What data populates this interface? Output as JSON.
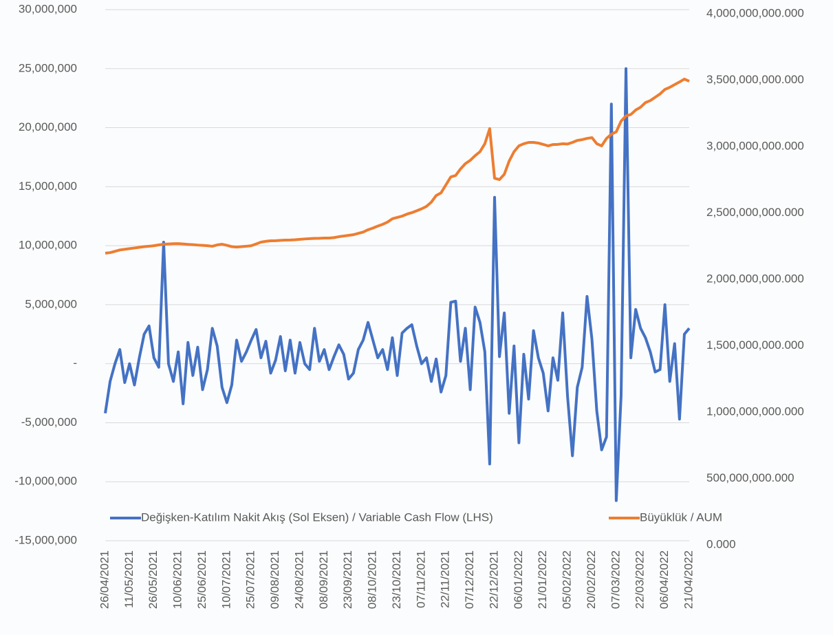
{
  "chart_data": {
    "type": "line",
    "x": [
      "26/04/2021",
      "29/04/2021",
      "02/05/2021",
      "05/05/2021",
      "08/05/2021",
      "11/05/2021",
      "14/05/2021",
      "17/05/2021",
      "20/05/2021",
      "23/05/2021",
      "26/05/2021",
      "29/05/2021",
      "01/06/2021",
      "04/06/2021",
      "07/06/2021",
      "10/06/2021",
      "13/06/2021",
      "16/06/2021",
      "19/06/2021",
      "22/06/2021",
      "25/06/2021",
      "28/06/2021",
      "01/07/2021",
      "04/07/2021",
      "07/07/2021",
      "10/07/2021",
      "13/07/2021",
      "16/07/2021",
      "19/07/2021",
      "22/07/2021",
      "25/07/2021",
      "28/07/2021",
      "31/07/2021",
      "03/08/2021",
      "06/08/2021",
      "09/08/2021",
      "12/08/2021",
      "15/08/2021",
      "18/08/2021",
      "21/08/2021",
      "24/08/2021",
      "27/08/2021",
      "30/08/2021",
      "02/09/2021",
      "05/09/2021",
      "08/09/2021",
      "11/09/2021",
      "14/09/2021",
      "17/09/2021",
      "20/09/2021",
      "23/09/2021",
      "26/09/2021",
      "29/09/2021",
      "02/10/2021",
      "05/10/2021",
      "08/10/2021",
      "11/10/2021",
      "14/10/2021",
      "17/10/2021",
      "20/10/2021",
      "23/10/2021",
      "26/10/2021",
      "29/10/2021",
      "01/11/2021",
      "04/11/2021",
      "07/11/2021",
      "10/11/2021",
      "13/11/2021",
      "16/11/2021",
      "19/11/2021",
      "22/11/2021",
      "25/11/2021",
      "28/11/2021",
      "01/12/2021",
      "04/12/2021",
      "07/12/2021",
      "10/12/2021",
      "13/12/2021",
      "16/12/2021",
      "19/12/2021",
      "22/12/2021",
      "25/12/2021",
      "28/12/2021",
      "31/12/2021",
      "03/01/2022",
      "06/01/2022",
      "09/01/2022",
      "12/01/2022",
      "15/01/2022",
      "18/01/2022",
      "21/01/2022",
      "24/01/2022",
      "27/01/2022",
      "30/01/2022",
      "02/02/2022",
      "05/02/2022",
      "08/02/2022",
      "11/02/2022",
      "14/02/2022",
      "17/02/2022",
      "20/02/2022",
      "23/02/2022",
      "26/02/2022",
      "01/03/2022",
      "04/03/2022",
      "07/03/2022",
      "10/03/2022",
      "13/03/2022",
      "16/03/2022",
      "19/03/2022",
      "22/03/2022",
      "25/03/2022",
      "28/03/2022",
      "31/03/2022",
      "03/04/2022",
      "06/04/2022",
      "09/04/2022",
      "12/04/2022",
      "15/04/2022",
      "18/04/2022",
      "21/04/2022"
    ],
    "xticks": [
      "26/04/2021",
      "11/05/2021",
      "26/05/2021",
      "10/06/2021",
      "25/06/2021",
      "10/07/2021",
      "25/07/2021",
      "09/08/2021",
      "24/08/2021",
      "08/09/2021",
      "23/09/2021",
      "08/10/2021",
      "23/10/2021",
      "07/11/2021",
      "22/11/2021",
      "07/12/2021",
      "22/12/2021",
      "06/01/2022",
      "21/01/2022",
      "05/02/2022",
      "20/02/2022",
      "07/03/2022",
      "22/03/2022",
      "06/04/2022",
      "21/04/2022"
    ],
    "series": [
      {
        "name": "Değişken-Katılım Nakit Akış (Sol Eksen) / Variable Cash Flow (LHS)",
        "color": "#4472c4",
        "axis": "y",
        "values": [
          -4200000,
          -1500000,
          0,
          1200000,
          -1600000,
          0,
          -1800000,
          500000,
          2500000,
          3200000,
          500000,
          -300000,
          10300000,
          0,
          -1500000,
          1000000,
          -3400000,
          1800000,
          -1000000,
          1400000,
          -2200000,
          -500000,
          3000000,
          1500000,
          -2000000,
          -3300000,
          -1800000,
          2000000,
          200000,
          1000000,
          2000000,
          2900000,
          500000,
          1900000,
          -800000,
          300000,
          2300000,
          -600000,
          2000000,
          -800000,
          1800000,
          0,
          -500000,
          3000000,
          200000,
          1200000,
          -500000,
          600000,
          1600000,
          800000,
          -1300000,
          -800000,
          1200000,
          2000000,
          3500000,
          2000000,
          500000,
          1200000,
          -500000,
          2200000,
          -1000000,
          2600000,
          3000000,
          3300000,
          1500000,
          0,
          500000,
          -1500000,
          400000,
          -2400000,
          -1000000,
          5200000,
          5300000,
          200000,
          3000000,
          -2200000,
          4800000,
          3500000,
          1000000,
          -8500000,
          14100000,
          600000,
          4300000,
          -4200000,
          1500000,
          -6700000,
          800000,
          -3000000,
          2800000,
          500000,
          -800000,
          -4000000,
          500000,
          -1400000,
          4300000,
          -2800000,
          -7800000,
          -2000000,
          -300000,
          5700000,
          2100000,
          -4000000,
          -7300000,
          -6200000,
          22000000,
          -11600000,
          -2700000,
          25000000,
          500000,
          4600000,
          3000000,
          2200000,
          1000000,
          -700000,
          -500000,
          5000000,
          -1500000,
          1700000,
          -4700000,
          2500000,
          3000000
        ]
      },
      {
        "name": "Büyüklük / AUM",
        "color": "#ed7d31",
        "axis": "y2",
        "values": [
          2166000000000,
          2170000000000,
          2180000000000,
          2190000000000,
          2195000000000,
          2200000000000,
          2205000000000,
          2210000000000,
          2215000000000,
          2218000000000,
          2222000000000,
          2228000000000,
          2233000000000,
          2235000000000,
          2237000000000,
          2238000000000,
          2235000000000,
          2232000000000,
          2230000000000,
          2227000000000,
          2225000000000,
          2222000000000,
          2218000000000,
          2228000000000,
          2233000000000,
          2225000000000,
          2215000000000,
          2212000000000,
          2215000000000,
          2218000000000,
          2222000000000,
          2235000000000,
          2249000000000,
          2255000000000,
          2259000000000,
          2260000000000,
          2262000000000,
          2264000000000,
          2265000000000,
          2267000000000,
          2270000000000,
          2273000000000,
          2275000000000,
          2277000000000,
          2278000000000,
          2280000000000,
          2280000000000,
          2283000000000,
          2290000000000,
          2295000000000,
          2300000000000,
          2305000000000,
          2315000000000,
          2325000000000,
          2342000000000,
          2355000000000,
          2370000000000,
          2383000000000,
          2400000000000,
          2425000000000,
          2435000000000,
          2445000000000,
          2460000000000,
          2471000000000,
          2485000000000,
          2500000000000,
          2518000000000,
          2550000000000,
          2600000000000,
          2620000000000,
          2680000000000,
          2740000000000,
          2751000000000,
          2800000000000,
          2840000000000,
          2865000000000,
          2900000000000,
          2930000000000,
          2990000000000,
          3104000000000,
          2730000000000,
          2720000000000,
          2760000000000,
          2860000000000,
          2930000000000,
          2974000000000,
          2990000000000,
          3000000000000,
          3000000000000,
          2995000000000,
          2985000000000,
          2974000000000,
          2984000000000,
          2985000000000,
          2990000000000,
          2988000000000,
          3000000000000,
          3015000000000,
          3021000000000,
          3030000000000,
          3036000000000,
          2990000000000,
          2974000000000,
          3030000000000,
          3062000000000,
          3080000000000,
          3160000000000,
          3200000000000,
          3210000000000,
          3244000000000,
          3265000000000,
          3300000000000,
          3315000000000,
          3340000000000,
          3365000000000,
          3399000000000,
          3415000000000,
          3435000000000,
          3455000000000,
          3477000000000,
          3461000000000
        ]
      }
    ],
    "ylim": [
      -15000000,
      30000000
    ],
    "yticks": [
      {
        "value": -15000000,
        "label": "-15,000,000"
      },
      {
        "value": -10000000,
        "label": "-10,000,000"
      },
      {
        "value": -5000000,
        "label": "-5,000,000"
      },
      {
        "value": 0,
        "label": "-"
      },
      {
        "value": 5000000,
        "label": "5,000,000"
      },
      {
        "value": 10000000,
        "label": "10,000,000"
      },
      {
        "value": 15000000,
        "label": "15,000,000"
      },
      {
        "value": 20000000,
        "label": "20,000,000"
      },
      {
        "value": 25000000,
        "label": "25,000,000"
      },
      {
        "value": 30000000,
        "label": "30,000,000"
      }
    ],
    "y2lim": [
      0,
      4000000000000
    ],
    "y2ticks": [
      {
        "value": 0,
        "label": "0.000"
      },
      {
        "value": 500000000000,
        "label": "500,000,000.000"
      },
      {
        "value": 1000000000000,
        "label": "1,000,000,000.000"
      },
      {
        "value": 1500000000000,
        "label": "1,500,000,000.000"
      },
      {
        "value": 2000000000000,
        "label": "2,000,000,000.000"
      },
      {
        "value": 2500000000000,
        "label": "2,500,000,000.000"
      },
      {
        "value": 3000000000000,
        "label": "3,000,000,000.000"
      },
      {
        "value": 3500000000000,
        "label": "3,500,000,000.000"
      },
      {
        "value": 4000000000000,
        "label": "4,000,000,000.000"
      }
    ],
    "grid": true,
    "legend": "bottom"
  }
}
